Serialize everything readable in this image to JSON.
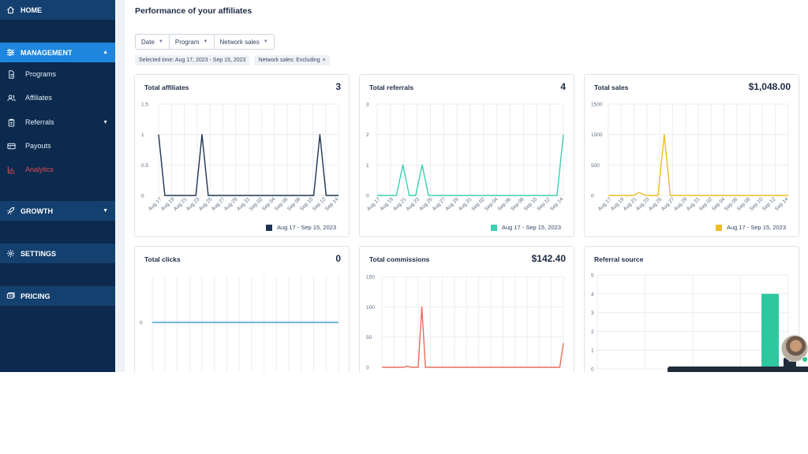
{
  "sidebar": {
    "home": "HOME",
    "management": "MANAGEMENT",
    "programs": "Programs",
    "affiliates": "Affiliates",
    "referrals": "Referrals",
    "payouts": "Payouts",
    "analytics": "Analytics",
    "growth": "GROWTH",
    "settings": "SETTINGS",
    "pricing": "PRICING"
  },
  "page": {
    "title": "Performance of your affiliates"
  },
  "filters": {
    "date": "Date",
    "program": "Program",
    "network_sales": "Network sales"
  },
  "chips": {
    "selected_time": "Selected time: Aug 17, 2023 - Sep 15, 2023",
    "network_sales": "Network sales: Excluding",
    "close_symbol": "×"
  },
  "colors": {
    "sidebar_bg": "#0b2a4e",
    "sidebar_active": "#1e86df",
    "analytics_text": "#e24a52",
    "affiliates_series": "#1d3553",
    "referrals_series": "#3dcfb0",
    "sales_series": "#f0bd22",
    "clicks_series": "#4a9fd2",
    "commissions_series": "#ec6a5c",
    "source_bar": "#2ec8a0"
  },
  "cards": {
    "affiliates": {
      "title": "Total affiliates",
      "value": "3",
      "legend": "Aug 17 - Sep 15, 2023"
    },
    "referrals": {
      "title": "Total referrals",
      "value": "4",
      "legend": "Aug 17 - Sep 15, 2023"
    },
    "sales": {
      "title": "Total sales",
      "value": "$1,048.00",
      "legend": "Aug 17 - Sep 15, 2023"
    },
    "clicks": {
      "title": "Total clicks",
      "value": "0"
    },
    "commissions": {
      "title": "Total commissions",
      "value": "$142.40"
    },
    "source": {
      "title": "Referral source"
    }
  },
  "chart_data": [
    {
      "type": "line",
      "title": "Total affiliates",
      "x_tick_labels": [
        "Aug 17",
        "Aug 19",
        "Aug 21",
        "Aug 23",
        "Aug 25",
        "Aug 27",
        "Aug 29",
        "Aug 31",
        "Sep 02",
        "Sep 04",
        "Sep 06",
        "Sep 08",
        "Sep 10",
        "Sep 12",
        "Sep 14"
      ],
      "y_tick_labels": [
        "0",
        "0.5",
        "1",
        "1.5"
      ],
      "ylim": [
        0,
        1.5
      ],
      "series": [
        {
          "name": "Aug 17 - Sep 15, 2023",
          "values": [
            1,
            0,
            0,
            0,
            0,
            0,
            0,
            1,
            0,
            0,
            0,
            0,
            0,
            0,
            0,
            0,
            0,
            0,
            0,
            0,
            0,
            0,
            0,
            0,
            0,
            0,
            1,
            0,
            0,
            0
          ]
        }
      ],
      "legend": "bottom-right",
      "grid": true
    },
    {
      "type": "line",
      "title": "Total referrals",
      "x_tick_labels": [
        "Aug 17",
        "Aug 19",
        "Aug 21",
        "Aug 23",
        "Aug 25",
        "Aug 27",
        "Aug 29",
        "Aug 31",
        "Sep 02",
        "Sep 04",
        "Sep 06",
        "Sep 08",
        "Sep 10",
        "Sep 12",
        "Sep 14"
      ],
      "y_tick_labels": [
        "0",
        "1",
        "2",
        "3"
      ],
      "ylim": [
        0,
        3
      ],
      "series": [
        {
          "name": "Aug 17 - Sep 15, 2023",
          "values": [
            0,
            0,
            0,
            0,
            1,
            0,
            0,
            1,
            0,
            0,
            0,
            0,
            0,
            0,
            0,
            0,
            0,
            0,
            0,
            0,
            0,
            0,
            0,
            0,
            0,
            0,
            0,
            0,
            0,
            2
          ]
        }
      ],
      "legend": "bottom-right",
      "grid": true
    },
    {
      "type": "line",
      "title": "Total sales",
      "x_tick_labels": [
        "Aug 17",
        "Aug 19",
        "Aug 21",
        "Aug 23",
        "Aug 25",
        "Aug 27",
        "Aug 29",
        "Aug 31",
        "Sep 02",
        "Sep 04",
        "Sep 06",
        "Sep 08",
        "Sep 10",
        "Sep 12",
        "Sep 14"
      ],
      "y_tick_labels": [
        "0",
        "500",
        "1000",
        "1500"
      ],
      "ylim": [
        0,
        1500
      ],
      "series": [
        {
          "name": "Aug 17 - Sep 15, 2023",
          "values": [
            0,
            0,
            0,
            0,
            0,
            48,
            0,
            0,
            0,
            1000,
            0,
            0,
            0,
            0,
            0,
            0,
            0,
            0,
            0,
            0,
            0,
            0,
            0,
            0,
            0,
            0,
            0,
            0,
            0,
            0
          ]
        }
      ],
      "legend": "bottom-right",
      "grid": true
    },
    {
      "type": "line",
      "title": "Total clicks",
      "y_tick_labels": [
        "0"
      ],
      "series": [
        {
          "values": [
            0,
            0,
            0,
            0,
            0,
            0,
            0,
            0,
            0,
            0,
            0,
            0,
            0,
            0,
            0,
            0,
            0,
            0,
            0,
            0,
            0,
            0,
            0,
            0,
            0,
            0,
            0,
            0,
            0,
            0
          ]
        }
      ],
      "grid": true
    },
    {
      "type": "line",
      "title": "Total commissions",
      "y_tick_labels": [
        "0",
        "50",
        "100",
        "150"
      ],
      "ylim": [
        0,
        150
      ],
      "series": [
        {
          "values": [
            0,
            0,
            0,
            0,
            0,
            0,
            0,
            2,
            0,
            0,
            0,
            100,
            0,
            0,
            0,
            0,
            0,
            0,
            0,
            0,
            0,
            0,
            0,
            0,
            0,
            0,
            0,
            0,
            0,
            0,
            0,
            0,
            0,
            0,
            0,
            0,
            0,
            0,
            0,
            0,
            0,
            0,
            0,
            0,
            0,
            0,
            0,
            0,
            0,
            0,
            40
          ]
        }
      ],
      "grid": true
    },
    {
      "type": "bar",
      "title": "Referral source",
      "y_tick_labels": [
        "0",
        "1",
        "2",
        "3",
        "4",
        "5"
      ],
      "ylim": [
        0,
        5
      ],
      "values": [
        4
      ],
      "grid": true
    }
  ]
}
